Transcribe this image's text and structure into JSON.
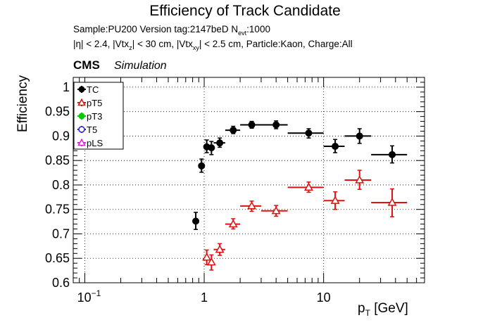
{
  "chart_data": {
    "type": "scatter",
    "title": "Efficiency of Track Candidate",
    "info_line1": {
      "part1": "Sample:PU200   Version tag:2147beD  N",
      "sub": "evt",
      "part2": ":1000"
    },
    "info_line2": {
      "p1": "|η| < 2.4, |Vtx",
      "s1": "z",
      "p2": "| < 30 cm, |Vtx",
      "s2": "xy",
      "p3": "| < 2.5 cm, Particle:Kaon, Charge:All"
    },
    "experiment": "CMS",
    "experiment_tag": "Simulation",
    "xlabel_main": "p",
    "xlabel_sub": "T",
    "xlabel_unit": " [GeV]",
    "ylabel": "Efficiency",
    "x_scale": "log",
    "xlim": [
      0.08,
      70
    ],
    "ylim": [
      0.6,
      1.02
    ],
    "grid": true,
    "x_ticks": [
      {
        "value": 0.1,
        "base": "10",
        "exp": "−1"
      },
      {
        "value": 1,
        "base": "1",
        "exp": ""
      },
      {
        "value": 10,
        "base": "10",
        "exp": ""
      }
    ],
    "y_ticks": [
      {
        "value": 0.6,
        "label": "0.6"
      },
      {
        "value": 0.65,
        "label": "0.65"
      },
      {
        "value": 0.7,
        "label": "0.7"
      },
      {
        "value": 0.75,
        "label": "0.75"
      },
      {
        "value": 0.8,
        "label": "0.8"
      },
      {
        "value": 0.85,
        "label": "0.85"
      },
      {
        "value": 0.9,
        "label": "0.9"
      },
      {
        "value": 0.95,
        "label": "0.95"
      },
      {
        "value": 1,
        "label": "1"
      }
    ],
    "legend_position": "top-left",
    "series": [
      {
        "name": "TC",
        "color": "#000000",
        "marker": "filled-circle",
        "points": [
          {
            "x": 0.85,
            "y": 0.726,
            "xlo": 0.8,
            "xhi": 0.9,
            "ylo": 0.709,
            "yhi": 0.744
          },
          {
            "x": 0.95,
            "y": 0.839,
            "xlo": 0.9,
            "xhi": 1.0,
            "ylo": 0.826,
            "yhi": 0.853
          },
          {
            "x": 1.05,
            "y": 0.878,
            "xlo": 1.0,
            "xhi": 1.1,
            "ylo": 0.866,
            "yhi": 0.892
          },
          {
            "x": 1.15,
            "y": 0.876,
            "xlo": 1.1,
            "xhi": 1.2,
            "ylo": 0.862,
            "yhi": 0.889
          },
          {
            "x": 1.35,
            "y": 0.886,
            "xlo": 1.2,
            "xhi": 1.5,
            "ylo": 0.877,
            "yhi": 0.896
          },
          {
            "x": 1.75,
            "y": 0.912,
            "xlo": 1.5,
            "xhi": 2.0,
            "ylo": 0.905,
            "yhi": 0.92
          },
          {
            "x": 2.5,
            "y": 0.923,
            "xlo": 2.0,
            "xhi": 3.0,
            "ylo": 0.916,
            "yhi": 0.93
          },
          {
            "x": 4.0,
            "y": 0.923,
            "xlo": 3.0,
            "xhi": 5.0,
            "ylo": 0.915,
            "yhi": 0.931
          },
          {
            "x": 7.5,
            "y": 0.906,
            "xlo": 5.0,
            "xhi": 10.0,
            "ylo": 0.896,
            "yhi": 0.915
          },
          {
            "x": 12.5,
            "y": 0.879,
            "xlo": 10.0,
            "xhi": 15.0,
            "ylo": 0.866,
            "yhi": 0.893
          },
          {
            "x": 20.0,
            "y": 0.9,
            "xlo": 15.0,
            "xhi": 25.0,
            "ylo": 0.885,
            "yhi": 0.915
          },
          {
            "x": 37.5,
            "y": 0.862,
            "xlo": 25.0,
            "xhi": 50.0,
            "ylo": 0.845,
            "yhi": 0.88
          }
        ]
      },
      {
        "name": "pT5",
        "color": "#e01010",
        "marker": "open-triangle",
        "points": [
          {
            "x": 1.05,
            "y": 0.652,
            "xlo": 1.0,
            "xhi": 1.1,
            "ylo": 0.637,
            "yhi": 0.667
          },
          {
            "x": 1.15,
            "y": 0.642,
            "xlo": 1.1,
            "xhi": 1.2,
            "ylo": 0.626,
            "yhi": 0.657
          },
          {
            "x": 1.35,
            "y": 0.668,
            "xlo": 1.2,
            "xhi": 1.5,
            "ylo": 0.656,
            "yhi": 0.68
          },
          {
            "x": 1.75,
            "y": 0.72,
            "xlo": 1.5,
            "xhi": 2.0,
            "ylo": 0.71,
            "yhi": 0.731
          },
          {
            "x": 2.5,
            "y": 0.757,
            "xlo": 2.0,
            "xhi": 3.0,
            "ylo": 0.746,
            "yhi": 0.767
          },
          {
            "x": 4.0,
            "y": 0.747,
            "xlo": 3.0,
            "xhi": 5.0,
            "ylo": 0.736,
            "yhi": 0.758
          },
          {
            "x": 7.5,
            "y": 0.795,
            "xlo": 5.0,
            "xhi": 10.0,
            "ylo": 0.785,
            "yhi": 0.806
          },
          {
            "x": 12.5,
            "y": 0.768,
            "xlo": 10.0,
            "xhi": 15.0,
            "ylo": 0.75,
            "yhi": 0.786
          },
          {
            "x": 20.0,
            "y": 0.81,
            "xlo": 15.0,
            "xhi": 25.0,
            "ylo": 0.791,
            "yhi": 0.83
          },
          {
            "x": 37.5,
            "y": 0.764,
            "xlo": 25.0,
            "xhi": 50.0,
            "ylo": 0.735,
            "yhi": 0.792
          }
        ]
      },
      {
        "name": "pT3",
        "color": "#00cc00",
        "marker": "filled-circle",
        "points": []
      },
      {
        "name": "T5",
        "color": "#2222dd",
        "marker": "open-circle",
        "points": []
      },
      {
        "name": "pLS",
        "color": "#dd22dd",
        "marker": "open-triangle",
        "points": []
      }
    ]
  }
}
